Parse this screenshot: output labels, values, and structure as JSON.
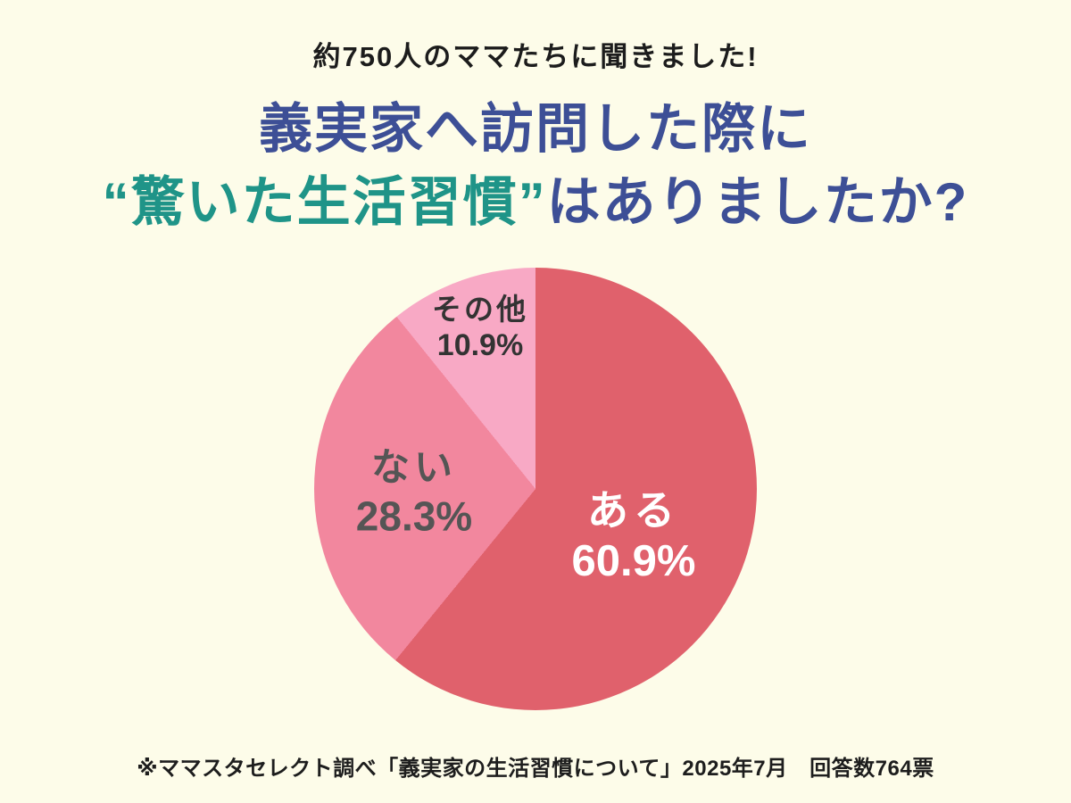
{
  "page": {
    "eyebrow": "約750人のママたちに聞きました!",
    "title_line1": "義実家へ訪問した際に",
    "title_line2_highlight": "“驚いた生活習慣”",
    "title_line2_rest": "はありましたか?",
    "footnote": "※ママスタセレクト調べ「義実家の生活習慣について」2025年7月　回答数764票",
    "colors": {
      "bg": "#FDFCE9",
      "ink": "#1C1C1C",
      "title": "#3D4F96",
      "highlight": "#1F9488",
      "footnote": "#1D1D1D"
    }
  },
  "chart_data": {
    "type": "pie",
    "title": "義実家へ訪問した際に“驚いた生活習慣”はありましたか?",
    "subtitle": "約750人のママたちに聞きました!",
    "source_note": "※ママスタセレクト調べ「義実家の生活習慣について」2025年7月　回答数764票",
    "sample_size_text": "回答数764票",
    "unit": "%",
    "start_angle_deg": 0,
    "direction": "clockwise",
    "legend_position": "inside-slices",
    "slices": [
      {
        "label": "ある",
        "value": 60.9,
        "display": "60.9%",
        "color": "#E0616C",
        "text_color": "#FFFFFF"
      },
      {
        "label": "ない",
        "value": 28.3,
        "display": "28.3%",
        "color": "#F2879E",
        "text_color": "#555555"
      },
      {
        "label": "その他",
        "value": 10.9,
        "display": "10.9%",
        "color": "#F8A9C5",
        "text_color": "#333333"
      }
    ]
  }
}
